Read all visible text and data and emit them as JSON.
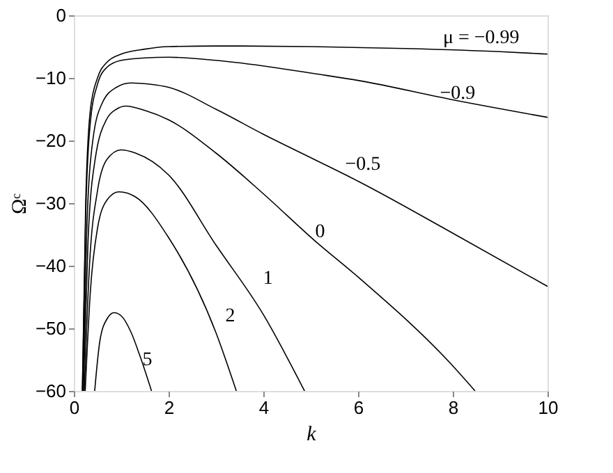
{
  "chart_data": {
    "type": "line",
    "xlabel": "k",
    "ylabel": "Ωᶜ",
    "xlim": [
      0,
      10
    ],
    "ylim": [
      -60,
      0
    ],
    "xticks": [
      0,
      2,
      4,
      6,
      8,
      10
    ],
    "yticks": [
      0,
      -10,
      -20,
      -30,
      -40,
      -50,
      -60
    ],
    "grid": false,
    "marker": "none",
    "line_style": "solid",
    "series": [
      {
        "name": "μ = −0.99",
        "color": "#000000",
        "x": [
          0.18,
          0.25,
          0.35,
          0.5,
          0.7,
          1.0,
          1.5,
          2,
          3,
          5,
          7,
          9,
          10
        ],
        "values": [
          -60,
          -30,
          -15,
          -10,
          -7.5,
          -6.2,
          -5.4,
          -5,
          -4.9,
          -5,
          -5.3,
          -5.8,
          -6.2
        ]
      },
      {
        "name": "−0.9",
        "color": "#000000",
        "x": [
          0.18,
          0.25,
          0.35,
          0.5,
          0.7,
          1.0,
          1.5,
          2,
          3,
          4.2,
          5.07,
          6,
          8,
          10
        ],
        "values": [
          -60,
          -32,
          -17,
          -11,
          -8.3,
          -7.2,
          -6.8,
          -6.7,
          -7.2,
          -8.3,
          -9.3,
          -10.4,
          -13.5,
          -16.3
        ]
      },
      {
        "name": "−0.5",
        "color": "#000000",
        "x": [
          0.19,
          0.27,
          0.4,
          0.6,
          0.9,
          1.2,
          1.6,
          2,
          3,
          4,
          5.07,
          6,
          8,
          10
        ],
        "values": [
          -60,
          -35,
          -20,
          -14,
          -11.5,
          -10.8,
          -11,
          -11.5,
          -15,
          -19,
          -23,
          -26.5,
          -34.8,
          -43.3
        ]
      },
      {
        "name": "0",
        "color": "#000000",
        "x": [
          0.2,
          0.3,
          0.45,
          0.7,
          0.9,
          1.1,
          1.5,
          2,
          3,
          4,
          5.07,
          6,
          8,
          8.47
        ],
        "values": [
          -60,
          -36,
          -23,
          -16.5,
          -15,
          -14.5,
          -15.2,
          -16.7,
          -22,
          -28.5,
          -35.9,
          -41.8,
          -56,
          -60
        ]
      },
      {
        "name": "1",
        "color": "#000000",
        "x": [
          0.22,
          0.33,
          0.5,
          0.7,
          1.0,
          1.3,
          2,
          3,
          4,
          4.87
        ],
        "values": [
          -60,
          -40,
          -28,
          -23,
          -21.5,
          -22,
          -25.5,
          -36.7,
          -47.8,
          -60
        ]
      },
      {
        "name": "2",
        "color": "#000000",
        "x": [
          0.24,
          0.35,
          0.5,
          0.7,
          0.95,
          1.3,
          2,
          3,
          3.43
        ],
        "values": [
          -60,
          -44,
          -34,
          -29.5,
          -28.2,
          -29,
          -35.5,
          -50.7,
          -60
        ]
      },
      {
        "name": "5",
        "color": "#000000",
        "x": [
          0.44,
          0.55,
          0.7,
          0.85,
          1.0,
          1.2,
          1.4,
          1.64
        ],
        "values": [
          -60,
          -52,
          -48.5,
          -47.5,
          -48,
          -50.5,
          -54.5,
          -60
        ]
      }
    ]
  }
}
